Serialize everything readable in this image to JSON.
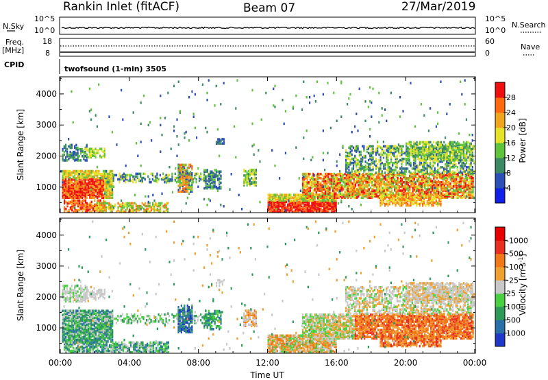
{
  "header": {
    "station": "Rankin Inlet (fitACF)",
    "beam": "Beam 07",
    "date": "27/Mar/2019"
  },
  "top_panels": {
    "nsky_label": "N.Sky",
    "nsky_ticks": [
      "10^5",
      "10^0"
    ],
    "nsearch_label": "N.Search",
    "nsearch_ticks": [
      "10^5",
      "10^0"
    ],
    "freq_label": "Freq.",
    "freq_unit": "[MHz]",
    "freq_ticks": [
      "18",
      "8"
    ],
    "nave_label": "Nave",
    "nave_ticks": [
      "60",
      "0"
    ],
    "cpid_label": "CPID",
    "cpid_text": "twofsound (1-min) 3505"
  },
  "chart_data": [
    {
      "type": "heatmap",
      "name": "power",
      "ylabel": "Slant Range [km]",
      "yticks": [
        "1000",
        "2000",
        "3000",
        "4000"
      ],
      "ylim": [
        180,
        4550
      ],
      "colorbar": {
        "label": "Power [dB]",
        "ticks": [
          "4",
          "8",
          "12",
          "16",
          "20",
          "24",
          "28"
        ],
        "colors": [
          "#1020e8",
          "#2a50b8",
          "#3c8a64",
          "#5fc43c",
          "#e6e22a",
          "#f0a51e",
          "#ff6a10",
          "#ee1010"
        ]
      },
      "xlim_hours": [
        0,
        24
      ]
    },
    {
      "type": "heatmap",
      "name": "velocity",
      "ylabel": "Slant Range [km]",
      "yticks": [
        "1000",
        "2000",
        "3000",
        "4000"
      ],
      "ylim": [
        180,
        4550
      ],
      "colorbar": {
        "label": "Velocity [m s",
        "label_sup": "-1",
        "label_close": "]",
        "ticks": [
          "1000",
          "500",
          "100",
          "25",
          "-25",
          "-100",
          "-500",
          "-1000"
        ],
        "colors": [
          "#2038c8",
          "#2a70a8",
          "#2e9a5a",
          "#48d040",
          "#c8c8c8",
          "#f0a030",
          "#f07818",
          "#e83020",
          "#e80000"
        ]
      },
      "xlabel": "Time UT",
      "xticks": [
        "00:00",
        "04:00",
        "08:00",
        "12:00",
        "16:00",
        "20:00",
        "00:00"
      ]
    }
  ]
}
